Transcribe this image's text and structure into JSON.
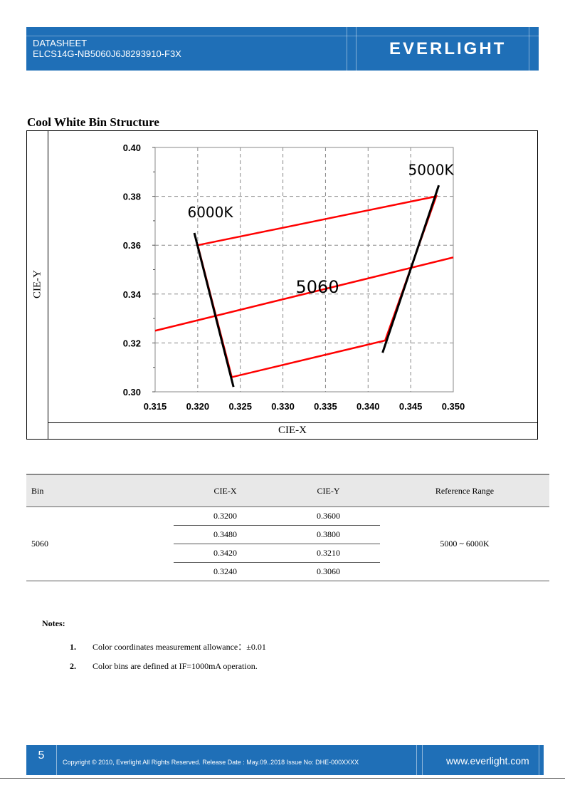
{
  "header": {
    "line1": "DATASHEET",
    "line2": "ELCS14G-NB5060J6J8293910-F3X",
    "logo": "EVERLIGHT",
    "bg_color": "#1f6fb7"
  },
  "section_title": "Cool White Bin Structure",
  "chart_frame": {
    "ylabel": "CIE-Y",
    "xlabel": "CIE-X"
  },
  "chart_data": {
    "type": "line",
    "xlim": [
      0.315,
      0.35
    ],
    "ylim": [
      0.3,
      0.4
    ],
    "x_ticks": [
      "0.315",
      "0.320",
      "0.325",
      "0.330",
      "0.335",
      "0.340",
      "0.345",
      "0.350"
    ],
    "y_ticks": [
      "0.30",
      "0.32",
      "0.34",
      "0.36",
      "0.38",
      "0.40"
    ],
    "grid": true,
    "bin_polygon": [
      [
        0.32,
        0.36
      ],
      [
        0.348,
        0.38
      ],
      [
        0.342,
        0.321
      ],
      [
        0.324,
        0.306
      ]
    ],
    "center_line": [
      [
        0.315,
        0.325
      ],
      [
        0.35,
        0.355
      ]
    ],
    "cct_lines": [
      {
        "label": "6000K",
        "points": [
          [
            0.3196,
            0.365
          ],
          [
            0.3242,
            0.302
          ]
        ]
      },
      {
        "label": "5000K",
        "points": [
          [
            0.3483,
            0.3845
          ],
          [
            0.3417,
            0.316
          ]
        ]
      }
    ],
    "bin_label": "5060",
    "polygon_color": "#ff0000",
    "cct_color": "#000000"
  },
  "table": {
    "headers": [
      "Bin",
      "CIE-X",
      "CIE-Y",
      "Reference Range"
    ],
    "bin": "5060",
    "range": "5000 ~ 6000K",
    "rows": [
      {
        "x": "0.3200",
        "y": "0.3600"
      },
      {
        "x": "0.3480",
        "y": "0.3800"
      },
      {
        "x": "0.3420",
        "y": "0.3210"
      },
      {
        "x": "0.3240",
        "y": "0.3060"
      }
    ]
  },
  "notes": {
    "title": "Notes:",
    "items": [
      {
        "num": "1.",
        "text": "Color coordinates measurement allowance：±0.01"
      },
      {
        "num": "2.",
        "text": "Color bins are defined at IF=1000mA operation."
      }
    ]
  },
  "footer": {
    "page": "5",
    "copyright": "Copyright © 2010, Everlight All Rights Reserved. Release Date : May.09..2018   Issue No: DHE-000XXXX",
    "website": "www.everlight.com"
  }
}
